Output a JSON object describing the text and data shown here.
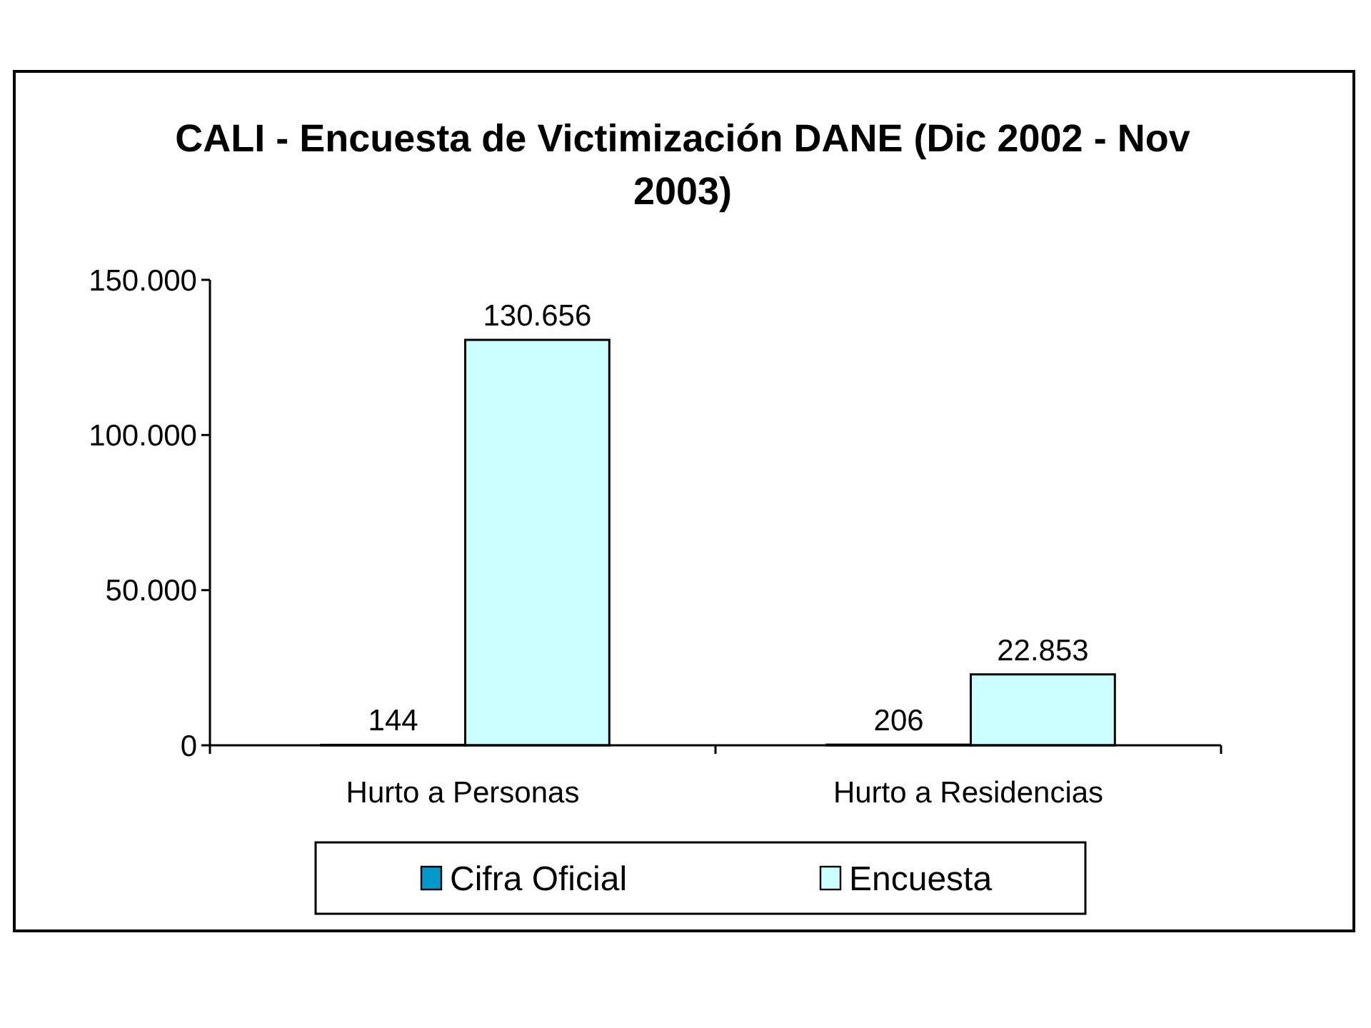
{
  "chart_data": {
    "type": "bar",
    "title": "CALI - Encuesta de Victimización DANE (Dic 2002 - Nov 2003)",
    "categories": [
      "Hurto a Personas",
      "Hurto a Residencias"
    ],
    "series": [
      {
        "name": "Cifra Oficial",
        "color": "#0099cc",
        "values": [
          144,
          206
        ],
        "value_labels": [
          "144",
          "206"
        ]
      },
      {
        "name": "Encuesta",
        "color": "#ccffff",
        "values": [
          130656,
          22853
        ],
        "value_labels": [
          "130.656",
          "22.853"
        ]
      }
    ],
    "ylim": [
      0,
      150000
    ],
    "yticks": [
      0,
      {
        "value": 50000,
        "label": "50.000"
      },
      {
        "value": 100000,
        "label": "100.000"
      },
      {
        "value": 150000,
        "label": "150.000"
      }
    ],
    "legend": "bottom"
  }
}
